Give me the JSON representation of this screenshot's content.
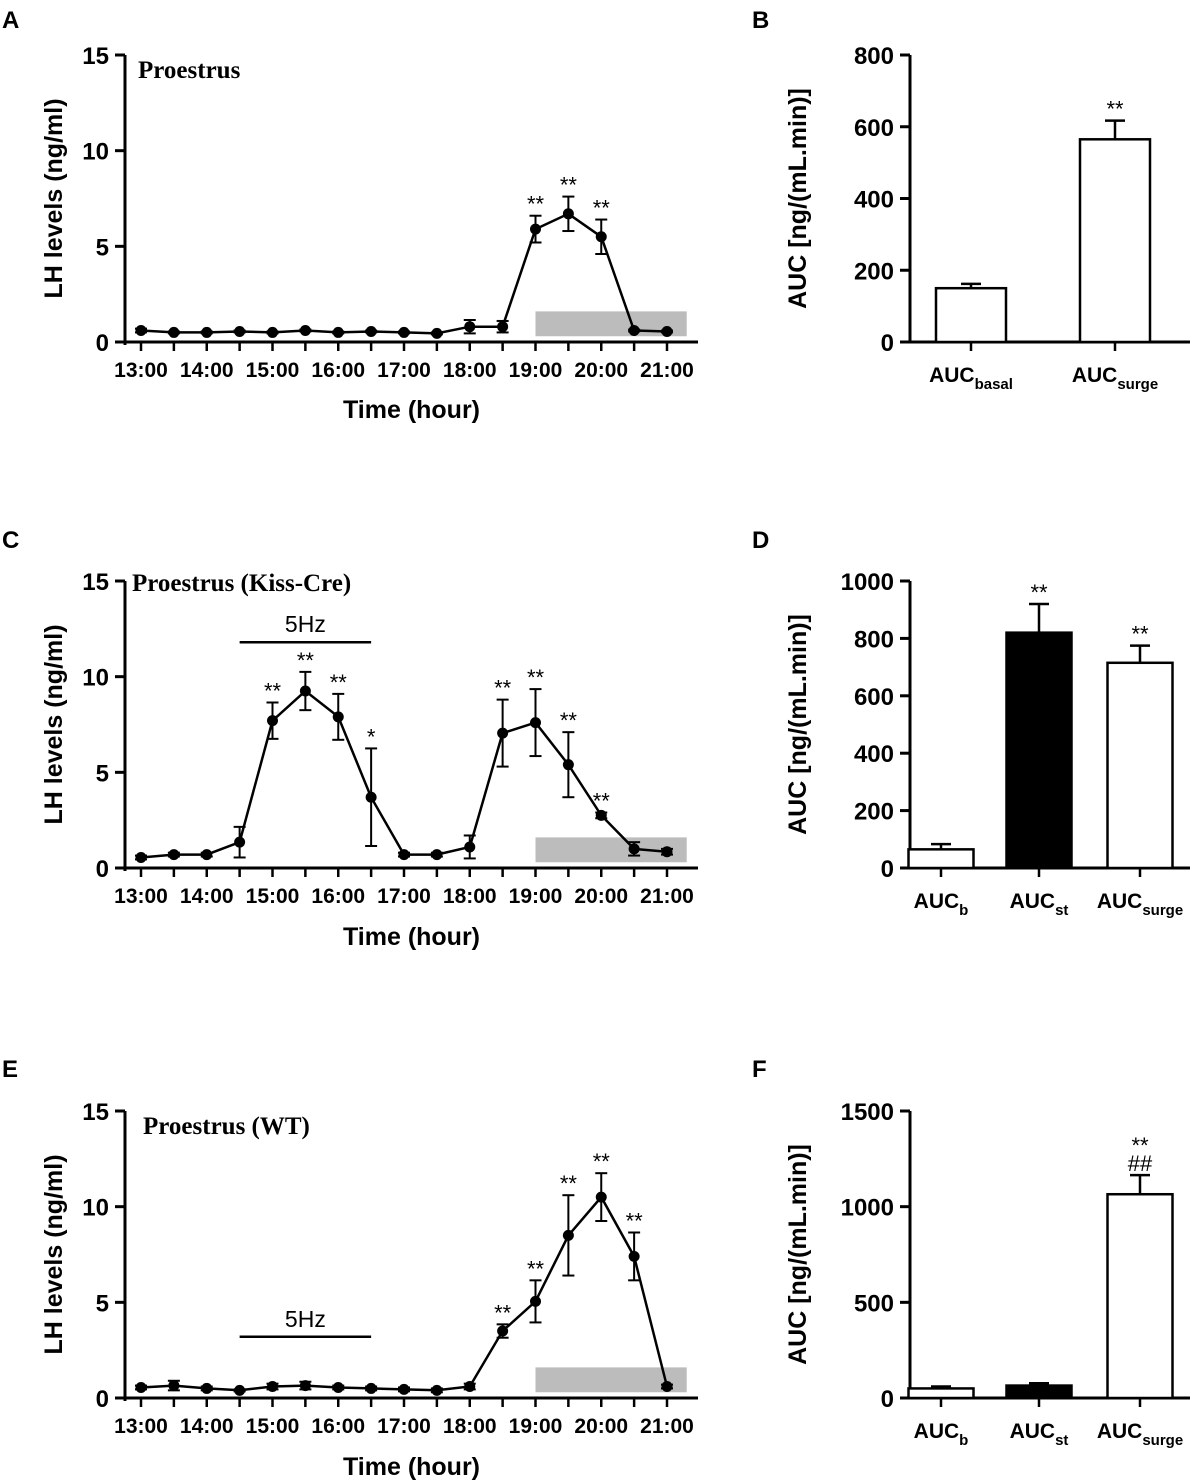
{
  "chart_data": [
    {
      "panel": "A",
      "type": "line",
      "annotation": "Proestrus",
      "xlabel": "Time (hour)",
      "ylabel": "LH levels (ng/ml)",
      "ylim": [
        0,
        15
      ],
      "xticks": [
        "13:00",
        "14:00",
        "15:00",
        "16:00",
        "17:00",
        "18:00",
        "19:00",
        "20:00",
        "21:00"
      ],
      "yticks": [
        "0",
        "5",
        "10",
        "15"
      ],
      "x": [
        13,
        13.5,
        14,
        14.5,
        15,
        15.5,
        16,
        16.5,
        17,
        17.5,
        18,
        18.5,
        19,
        19.5,
        20,
        20.5,
        21
      ],
      "values": [
        0.6,
        0.5,
        0.5,
        0.55,
        0.5,
        0.6,
        0.5,
        0.55,
        0.5,
        0.45,
        0.8,
        0.8,
        5.9,
        6.7,
        5.5,
        0.6,
        0.55
      ],
      "errors": [
        0.1,
        0.05,
        0.05,
        0.05,
        0.05,
        0.05,
        0.05,
        0.05,
        0.05,
        0.05,
        0.35,
        0.3,
        0.7,
        0.9,
        0.9,
        0.05,
        0.05
      ],
      "significance": [
        {
          "x": 19,
          "label": "**"
        },
        {
          "x": 19.5,
          "label": "**"
        },
        {
          "x": 20,
          "label": "**"
        }
      ],
      "shaded_range": {
        "x": [
          19,
          21.3
        ],
        "y": [
          0.3,
          1.6
        ]
      },
      "stimulation": null
    },
    {
      "panel": "B",
      "type": "bar",
      "ylabel": "AUC [ng/(mL.min)]",
      "ylim": [
        0,
        800
      ],
      "yticks": [
        "0",
        "200",
        "400",
        "600",
        "800"
      ],
      "categories": [
        {
          "base": "AUC",
          "sub": "basal"
        },
        {
          "base": "AUC",
          "sub": "surge"
        }
      ],
      "values": [
        150,
        565
      ],
      "errors": [
        12,
        52
      ],
      "fills": [
        "#ffffff",
        "#ffffff"
      ],
      "significance": [
        "",
        "**"
      ]
    },
    {
      "panel": "C",
      "type": "line",
      "annotation": "Proestrus (Kiss-Cre)",
      "xlabel": "Time (hour)",
      "ylabel": "LH levels (ng/ml)",
      "ylim": [
        0,
        15
      ],
      "xticks": [
        "13:00",
        "14:00",
        "15:00",
        "16:00",
        "17:00",
        "18:00",
        "19:00",
        "20:00",
        "21:00"
      ],
      "yticks": [
        "0",
        "5",
        "10",
        "15"
      ],
      "x": [
        13,
        13.5,
        14,
        14.5,
        15,
        15.5,
        16,
        16.5,
        17,
        17.5,
        18,
        18.5,
        19,
        19.5,
        20,
        20.5,
        21
      ],
      "values": [
        0.55,
        0.7,
        0.7,
        1.35,
        7.7,
        9.25,
        7.9,
        3.7,
        0.7,
        0.7,
        1.1,
        7.05,
        7.6,
        5.4,
        2.75,
        1.0,
        0.85
      ],
      "errors": [
        0.1,
        0.1,
        0.1,
        0.8,
        0.95,
        1.0,
        1.2,
        2.55,
        0.1,
        0.1,
        0.6,
        1.75,
        1.75,
        1.7,
        0.15,
        0.35,
        0.15
      ],
      "significance": [
        {
          "x": 15,
          "label": "**"
        },
        {
          "x": 15.5,
          "label": "**"
        },
        {
          "x": 16,
          "label": "**"
        },
        {
          "x": 16.5,
          "label": "*"
        },
        {
          "x": 18.5,
          "label": "**"
        },
        {
          "x": 19,
          "label": "**"
        },
        {
          "x": 19.5,
          "label": "**"
        },
        {
          "x": 20,
          "label": "**"
        }
      ],
      "shaded_range": {
        "x": [
          19,
          21.3
        ],
        "y": [
          0.3,
          1.6
        ]
      },
      "stimulation": {
        "label": "5Hz",
        "x": [
          14.5,
          16.5
        ],
        "y": 11.8
      }
    },
    {
      "panel": "D",
      "type": "bar",
      "ylabel": "AUC [ng/(mL.min)]",
      "ylim": [
        0,
        1000
      ],
      "yticks": [
        "0",
        "200",
        "400",
        "600",
        "800",
        "1000"
      ],
      "categories": [
        {
          "base": "AUC",
          "sub": "b"
        },
        {
          "base": "AUC",
          "sub": "st"
        },
        {
          "base": "AUC",
          "sub": "surge"
        }
      ],
      "values": [
        65,
        820,
        715
      ],
      "errors": [
        18,
        100,
        60
      ],
      "fills": [
        "#ffffff",
        "#000000",
        "#ffffff"
      ],
      "significance": [
        "",
        "**",
        "**"
      ]
    },
    {
      "panel": "E",
      "type": "line",
      "annotation": "Proestrus (WT)",
      "xlabel": "Time (hour)",
      "ylabel": "LH levels (ng/ml)",
      "ylim": [
        0,
        15
      ],
      "xticks": [
        "13:00",
        "14:00",
        "15:00",
        "16:00",
        "17:00",
        "18:00",
        "19:00",
        "20:00",
        "21:00"
      ],
      "yticks": [
        "0",
        "5",
        "10",
        "15"
      ],
      "x": [
        13,
        13.5,
        14,
        14.5,
        15,
        15.5,
        16,
        16.5,
        17,
        17.5,
        18,
        18.5,
        19,
        19.5,
        20,
        20.5,
        21
      ],
      "values": [
        0.55,
        0.65,
        0.5,
        0.4,
        0.6,
        0.65,
        0.55,
        0.5,
        0.45,
        0.4,
        0.6,
        3.5,
        5.05,
        8.5,
        10.5,
        7.4,
        0.6
      ],
      "errors": [
        0.1,
        0.25,
        0.1,
        0.05,
        0.15,
        0.2,
        0.1,
        0.1,
        0.1,
        0.1,
        0.15,
        0.35,
        1.1,
        2.1,
        1.25,
        1.25,
        0.1
      ],
      "significance": [
        {
          "x": 18.5,
          "label": "**"
        },
        {
          "x": 19,
          "label": "**"
        },
        {
          "x": 19.5,
          "label": "**"
        },
        {
          "x": 20,
          "label": "**"
        },
        {
          "x": 20.5,
          "label": "**"
        }
      ],
      "shaded_range": {
        "x": [
          19,
          21.3
        ],
        "y": [
          0.3,
          1.6
        ]
      },
      "stimulation": {
        "label": "5Hz",
        "x": [
          14.5,
          16.5
        ],
        "y": 3.2
      }
    },
    {
      "panel": "F",
      "type": "bar",
      "ylabel": "AUC [ng/(mL.min)]",
      "ylim": [
        0,
        1500
      ],
      "yticks": [
        "0",
        "500",
        "1000",
        "1500"
      ],
      "categories": [
        {
          "base": "AUC",
          "sub": "b"
        },
        {
          "base": "AUC",
          "sub": "st"
        },
        {
          "base": "AUC",
          "sub": "surge"
        }
      ],
      "values": [
        50,
        65,
        1065
      ],
      "errors": [
        10,
        12,
        100
      ],
      "fills": [
        "#ffffff",
        "#000000",
        "#ffffff"
      ],
      "significance": [
        "",
        "",
        "**"
      ],
      "significance2": [
        "",
        "",
        "##"
      ]
    }
  ]
}
